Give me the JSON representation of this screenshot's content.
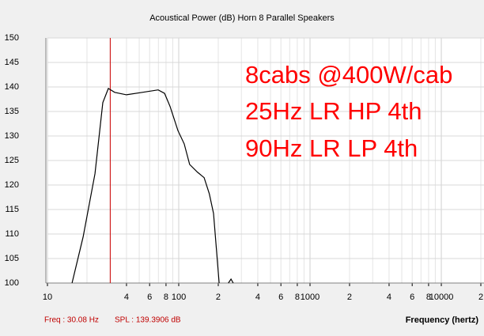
{
  "chart_data": {
    "type": "line",
    "title": "Acoustical Power (dB)    Horn    8 Parallel Speakers",
    "x_label": "Frequency (hertz)",
    "annotations": [
      "8cabs @400W/cab",
      "25Hz LR HP 4th",
      "90Hz LR LP  4th"
    ],
    "status": [
      "Freq : 30.08 Hz",
      "SPL : 139.3906 dB"
    ],
    "cursor_x": 30.08,
    "cursor_color": "#cc0000",
    "x_scale": "log",
    "grid": true,
    "xlim": [
      10,
      20000
    ],
    "ylim": [
      100,
      150
    ],
    "yticks": [
      100,
      105,
      110,
      115,
      120,
      125,
      130,
      135,
      140,
      145,
      150
    ],
    "xticks": [
      10,
      {
        "value": 40,
        "label": "4"
      },
      {
        "value": 60,
        "label": "6"
      },
      {
        "value": 80,
        "label": "8"
      },
      100,
      {
        "value": 200,
        "label": "2"
      },
      {
        "value": 400,
        "label": "4"
      },
      {
        "value": 600,
        "label": "6"
      },
      {
        "value": 800,
        "label": "8"
      },
      1000,
      {
        "value": 2000,
        "label": "2"
      },
      {
        "value": 4000,
        "label": "4"
      },
      {
        "value": 6000,
        "label": "6"
      },
      {
        "value": 8000,
        "label": "8"
      },
      10000,
      {
        "value": 20000,
        "label": "2"
      }
    ],
    "series": [
      {
        "color": "#000000",
        "x": [
          15.4,
          18.7,
          23,
          26.4,
          29.1,
          32.5,
          40,
          52.8,
          69.7,
          78,
          86,
          98.6,
          110,
          121,
          139,
          156,
          171,
          184,
          203,
          null,
          239,
          250,
          260
        ],
        "values": [
          100,
          109.4,
          122.3,
          136.8,
          139.7,
          138.9,
          138.4,
          138.9,
          139.4,
          138.7,
          136,
          131.1,
          128.4,
          124.2,
          122.6,
          121.5,
          118.2,
          114.2,
          100,
          null,
          100,
          100.8,
          100
        ]
      }
    ]
  }
}
